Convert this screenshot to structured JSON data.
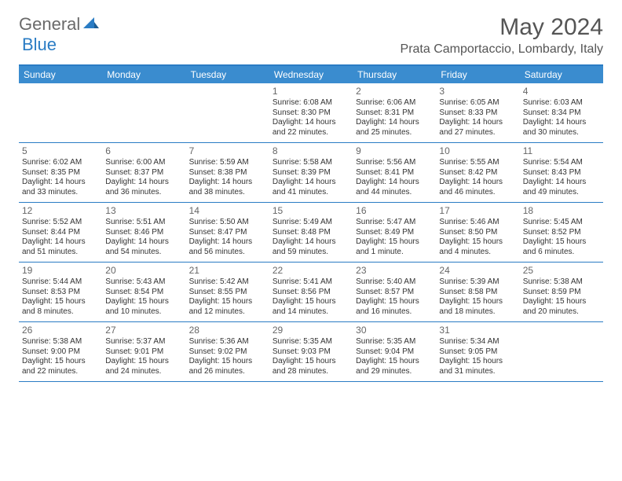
{
  "logo": {
    "text1": "General",
    "text2": "Blue"
  },
  "title": "May 2024",
  "location": "Prata Camportaccio, Lombardy, Italy",
  "colors": {
    "header_bg": "#3a8ccf",
    "border": "#2a7cc4",
    "logo_gray": "#6a6a6a",
    "logo_blue": "#2a7cc4",
    "text": "#333333",
    "daynum": "#666666"
  },
  "weekdays": [
    "Sunday",
    "Monday",
    "Tuesday",
    "Wednesday",
    "Thursday",
    "Friday",
    "Saturday"
  ],
  "weeks": [
    [
      {
        "n": "",
        "sr": "",
        "ss": "",
        "d1": "",
        "d2": ""
      },
      {
        "n": "",
        "sr": "",
        "ss": "",
        "d1": "",
        "d2": ""
      },
      {
        "n": "",
        "sr": "",
        "ss": "",
        "d1": "",
        "d2": ""
      },
      {
        "n": "1",
        "sr": "Sunrise: 6:08 AM",
        "ss": "Sunset: 8:30 PM",
        "d1": "Daylight: 14 hours",
        "d2": "and 22 minutes."
      },
      {
        "n": "2",
        "sr": "Sunrise: 6:06 AM",
        "ss": "Sunset: 8:31 PM",
        "d1": "Daylight: 14 hours",
        "d2": "and 25 minutes."
      },
      {
        "n": "3",
        "sr": "Sunrise: 6:05 AM",
        "ss": "Sunset: 8:33 PM",
        "d1": "Daylight: 14 hours",
        "d2": "and 27 minutes."
      },
      {
        "n": "4",
        "sr": "Sunrise: 6:03 AM",
        "ss": "Sunset: 8:34 PM",
        "d1": "Daylight: 14 hours",
        "d2": "and 30 minutes."
      }
    ],
    [
      {
        "n": "5",
        "sr": "Sunrise: 6:02 AM",
        "ss": "Sunset: 8:35 PM",
        "d1": "Daylight: 14 hours",
        "d2": "and 33 minutes."
      },
      {
        "n": "6",
        "sr": "Sunrise: 6:00 AM",
        "ss": "Sunset: 8:37 PM",
        "d1": "Daylight: 14 hours",
        "d2": "and 36 minutes."
      },
      {
        "n": "7",
        "sr": "Sunrise: 5:59 AM",
        "ss": "Sunset: 8:38 PM",
        "d1": "Daylight: 14 hours",
        "d2": "and 38 minutes."
      },
      {
        "n": "8",
        "sr": "Sunrise: 5:58 AM",
        "ss": "Sunset: 8:39 PM",
        "d1": "Daylight: 14 hours",
        "d2": "and 41 minutes."
      },
      {
        "n": "9",
        "sr": "Sunrise: 5:56 AM",
        "ss": "Sunset: 8:41 PM",
        "d1": "Daylight: 14 hours",
        "d2": "and 44 minutes."
      },
      {
        "n": "10",
        "sr": "Sunrise: 5:55 AM",
        "ss": "Sunset: 8:42 PM",
        "d1": "Daylight: 14 hours",
        "d2": "and 46 minutes."
      },
      {
        "n": "11",
        "sr": "Sunrise: 5:54 AM",
        "ss": "Sunset: 8:43 PM",
        "d1": "Daylight: 14 hours",
        "d2": "and 49 minutes."
      }
    ],
    [
      {
        "n": "12",
        "sr": "Sunrise: 5:52 AM",
        "ss": "Sunset: 8:44 PM",
        "d1": "Daylight: 14 hours",
        "d2": "and 51 minutes."
      },
      {
        "n": "13",
        "sr": "Sunrise: 5:51 AM",
        "ss": "Sunset: 8:46 PM",
        "d1": "Daylight: 14 hours",
        "d2": "and 54 minutes."
      },
      {
        "n": "14",
        "sr": "Sunrise: 5:50 AM",
        "ss": "Sunset: 8:47 PM",
        "d1": "Daylight: 14 hours",
        "d2": "and 56 minutes."
      },
      {
        "n": "15",
        "sr": "Sunrise: 5:49 AM",
        "ss": "Sunset: 8:48 PM",
        "d1": "Daylight: 14 hours",
        "d2": "and 59 minutes."
      },
      {
        "n": "16",
        "sr": "Sunrise: 5:47 AM",
        "ss": "Sunset: 8:49 PM",
        "d1": "Daylight: 15 hours",
        "d2": "and 1 minute."
      },
      {
        "n": "17",
        "sr": "Sunrise: 5:46 AM",
        "ss": "Sunset: 8:50 PM",
        "d1": "Daylight: 15 hours",
        "d2": "and 4 minutes."
      },
      {
        "n": "18",
        "sr": "Sunrise: 5:45 AM",
        "ss": "Sunset: 8:52 PM",
        "d1": "Daylight: 15 hours",
        "d2": "and 6 minutes."
      }
    ],
    [
      {
        "n": "19",
        "sr": "Sunrise: 5:44 AM",
        "ss": "Sunset: 8:53 PM",
        "d1": "Daylight: 15 hours",
        "d2": "and 8 minutes."
      },
      {
        "n": "20",
        "sr": "Sunrise: 5:43 AM",
        "ss": "Sunset: 8:54 PM",
        "d1": "Daylight: 15 hours",
        "d2": "and 10 minutes."
      },
      {
        "n": "21",
        "sr": "Sunrise: 5:42 AM",
        "ss": "Sunset: 8:55 PM",
        "d1": "Daylight: 15 hours",
        "d2": "and 12 minutes."
      },
      {
        "n": "22",
        "sr": "Sunrise: 5:41 AM",
        "ss": "Sunset: 8:56 PM",
        "d1": "Daylight: 15 hours",
        "d2": "and 14 minutes."
      },
      {
        "n": "23",
        "sr": "Sunrise: 5:40 AM",
        "ss": "Sunset: 8:57 PM",
        "d1": "Daylight: 15 hours",
        "d2": "and 16 minutes."
      },
      {
        "n": "24",
        "sr": "Sunrise: 5:39 AM",
        "ss": "Sunset: 8:58 PM",
        "d1": "Daylight: 15 hours",
        "d2": "and 18 minutes."
      },
      {
        "n": "25",
        "sr": "Sunrise: 5:38 AM",
        "ss": "Sunset: 8:59 PM",
        "d1": "Daylight: 15 hours",
        "d2": "and 20 minutes."
      }
    ],
    [
      {
        "n": "26",
        "sr": "Sunrise: 5:38 AM",
        "ss": "Sunset: 9:00 PM",
        "d1": "Daylight: 15 hours",
        "d2": "and 22 minutes."
      },
      {
        "n": "27",
        "sr": "Sunrise: 5:37 AM",
        "ss": "Sunset: 9:01 PM",
        "d1": "Daylight: 15 hours",
        "d2": "and 24 minutes."
      },
      {
        "n": "28",
        "sr": "Sunrise: 5:36 AM",
        "ss": "Sunset: 9:02 PM",
        "d1": "Daylight: 15 hours",
        "d2": "and 26 minutes."
      },
      {
        "n": "29",
        "sr": "Sunrise: 5:35 AM",
        "ss": "Sunset: 9:03 PM",
        "d1": "Daylight: 15 hours",
        "d2": "and 28 minutes."
      },
      {
        "n": "30",
        "sr": "Sunrise: 5:35 AM",
        "ss": "Sunset: 9:04 PM",
        "d1": "Daylight: 15 hours",
        "d2": "and 29 minutes."
      },
      {
        "n": "31",
        "sr": "Sunrise: 5:34 AM",
        "ss": "Sunset: 9:05 PM",
        "d1": "Daylight: 15 hours",
        "d2": "and 31 minutes."
      },
      {
        "n": "",
        "sr": "",
        "ss": "",
        "d1": "",
        "d2": ""
      }
    ]
  ]
}
